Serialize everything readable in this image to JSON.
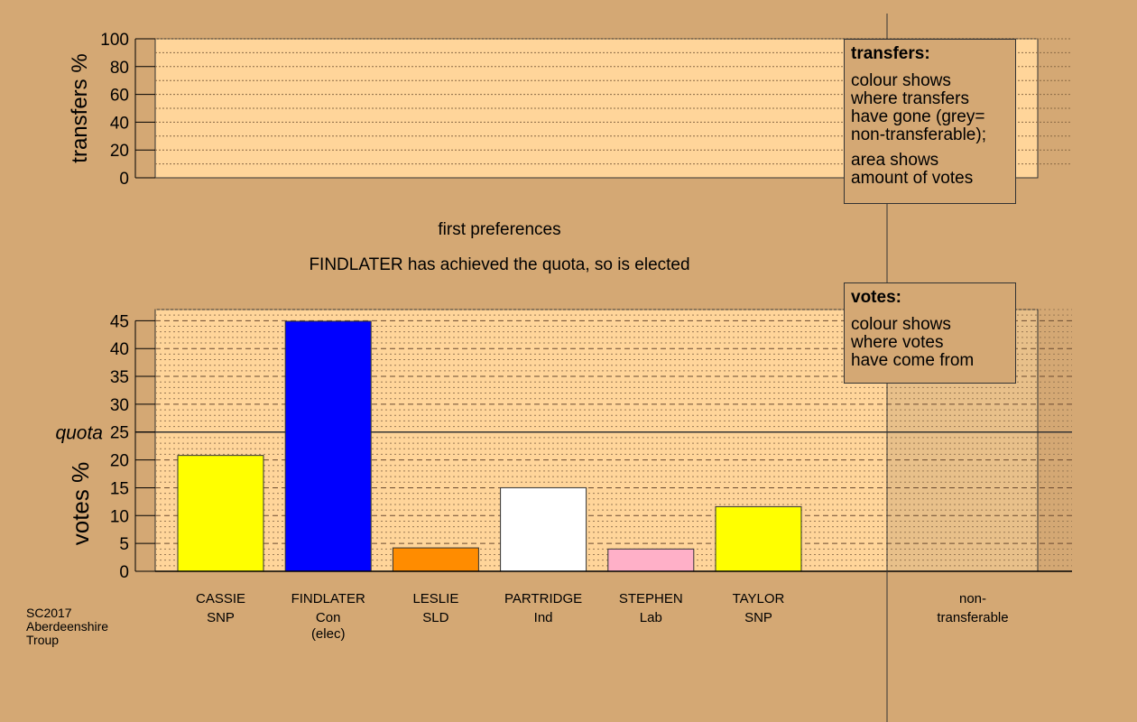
{
  "heading": "first preferences",
  "status_line": "FINDLATER has achieved the quota, so is elected",
  "footer": [
    "SC2017",
    "Aberdeenshire",
    "Troup"
  ],
  "legend_transfers": {
    "title": "transfers:",
    "lines1": [
      "colour shows",
      "where transfers",
      "have gone (grey=",
      "non-transferable);"
    ],
    "lines2": [
      "area shows",
      "amount of votes"
    ]
  },
  "legend_votes": {
    "title": "votes:",
    "lines": [
      "colour shows",
      "where votes",
      "have come from"
    ]
  },
  "colors": {
    "background": "#d4a874",
    "plot_bg": "#ffd59a",
    "nontransferable_bg": "#e8c08a"
  },
  "chart_data": [
    {
      "type": "bar",
      "ylabel": "transfers %",
      "ylim": [
        0,
        100
      ],
      "yticks": [
        0,
        20,
        40,
        60,
        80,
        100
      ],
      "categories": [],
      "values": []
    },
    {
      "type": "bar",
      "ylabel": "votes %",
      "ylim": [
        0,
        47
      ],
      "yticks": [
        0,
        5,
        10,
        15,
        20,
        25,
        30,
        35,
        40,
        45
      ],
      "quota": 25,
      "quota_label": "quota",
      "candidates": [
        {
          "name": "CASSIE",
          "party": "SNP",
          "note": "",
          "value": 20.8,
          "color": "#ffff00"
        },
        {
          "name": "FINDLATER",
          "party": "Con",
          "note": "(elec)",
          "value": 44.9,
          "color": "#0000ff"
        },
        {
          "name": "LESLIE",
          "party": "SLD",
          "note": "",
          "value": 4.2,
          "color": "#ff8c00"
        },
        {
          "name": "PARTRIDGE",
          "party": "Ind",
          "note": "",
          "value": 15.0,
          "color": "#ffffff"
        },
        {
          "name": "STEPHEN",
          "party": "Lab",
          "note": "",
          "value": 4.0,
          "color": "#ffb0c8"
        },
        {
          "name": "TAYLOR",
          "party": "SNP",
          "note": "",
          "value": 11.6,
          "color": "#ffff00"
        }
      ],
      "nontransferable": {
        "line1": "non-",
        "line2": "transferable",
        "value": 0
      }
    }
  ]
}
